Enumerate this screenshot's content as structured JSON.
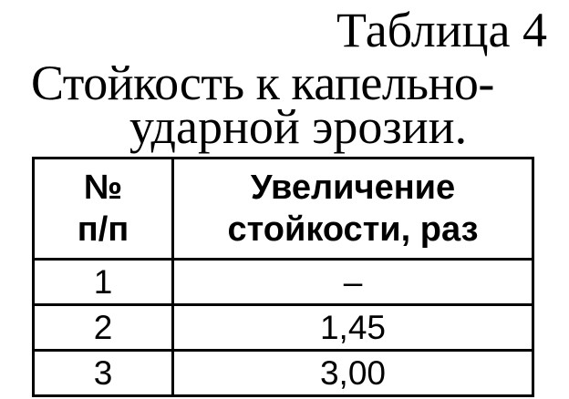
{
  "document": {
    "table_label": "Таблица 4",
    "title_line1": "Стойкость к капельно-",
    "title_line2": "ударной эрозии.",
    "table": {
      "headers": [
        {
          "line1": "№",
          "line2": "п/п"
        },
        {
          "line1": "Увеличение",
          "line2": "стойкости, раз"
        }
      ],
      "rows": [
        [
          "1",
          "–"
        ],
        [
          "2",
          "1,45"
        ],
        [
          "3",
          "3,00"
        ]
      ]
    }
  }
}
